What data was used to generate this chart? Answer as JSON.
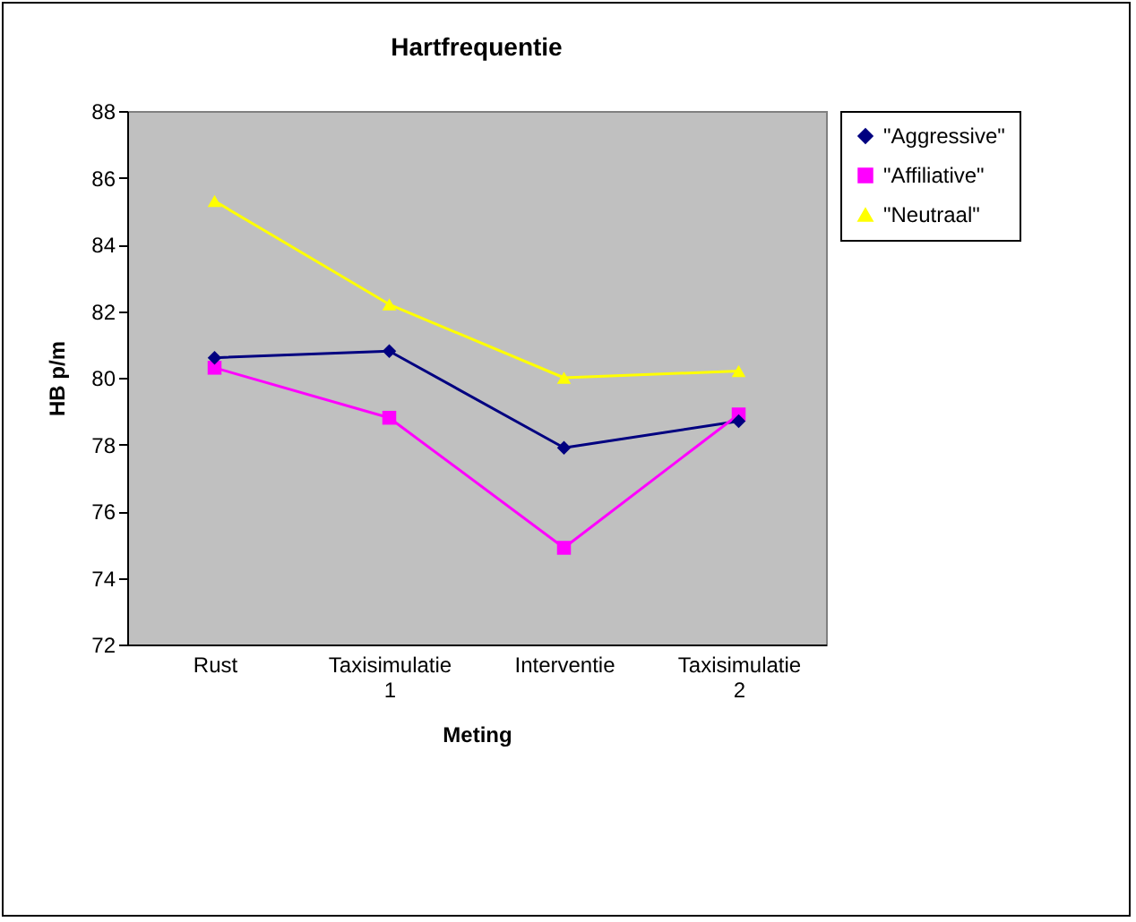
{
  "chart_data": {
    "type": "line",
    "title": "Hartfrequentie",
    "xlabel": "Meting",
    "ylabel": "HB p/m",
    "categories": [
      "Rust",
      "Taxisimulatie 1",
      "Interventie",
      "Taxisimulatie 2"
    ],
    "series": [
      {
        "name": "\"Aggressive\"",
        "color": "#000080",
        "marker": "diamond",
        "values": [
          80.6,
          80.8,
          77.9,
          78.7
        ]
      },
      {
        "name": "\"Affiliative\"",
        "color": "#ff00ff",
        "marker": "square",
        "values": [
          80.3,
          78.8,
          74.9,
          78.9
        ]
      },
      {
        "name": "\"Neutraal\"",
        "color": "#ffff00",
        "marker": "triangle",
        "values": [
          85.3,
          82.2,
          80.0,
          80.2
        ]
      }
    ],
    "ylim": [
      72,
      88
    ],
    "yticks": [
      72,
      74,
      76,
      78,
      80,
      82,
      84,
      86,
      88
    ],
    "grid": false,
    "legend": "right",
    "line_style": "solid"
  }
}
